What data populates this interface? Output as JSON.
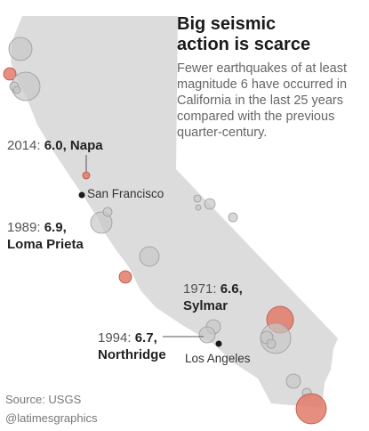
{
  "title_line1": "Big seismic",
  "title_line2": "action is scarce",
  "subtitle": "Fewer earthquakes of at least magnitude 6 have occurred in California in the last 25 years compared with the previous quarter-century.",
  "colors": {
    "state_fill": "#dcdcdc",
    "recent_quake": "#e27a68",
    "older_quake": "#c8c8c8",
    "city_dot": "#1a1a1a"
  },
  "labels": {
    "napa": {
      "year": "2014:",
      "magnitude_name": "6.0, Napa"
    },
    "loma_prieta": {
      "year": "1989:",
      "magnitude": "6.9,",
      "name": "Loma Prieta"
    },
    "sylmar": {
      "year": "1971:",
      "magnitude": "6.6,",
      "name": "Sylmar"
    },
    "northridge": {
      "year": "1994:",
      "magnitude": "6.7,",
      "name": "Northridge"
    }
  },
  "cities": {
    "san_francisco": "San Francisco",
    "los_angeles": "Los Angeles"
  },
  "footer": {
    "source": "Source: USGS",
    "credit": "@latimesgraphics"
  },
  "legend_meaning": {
    "recent_quake": "last 25 years",
    "older_quake": "previous quarter-century"
  }
}
